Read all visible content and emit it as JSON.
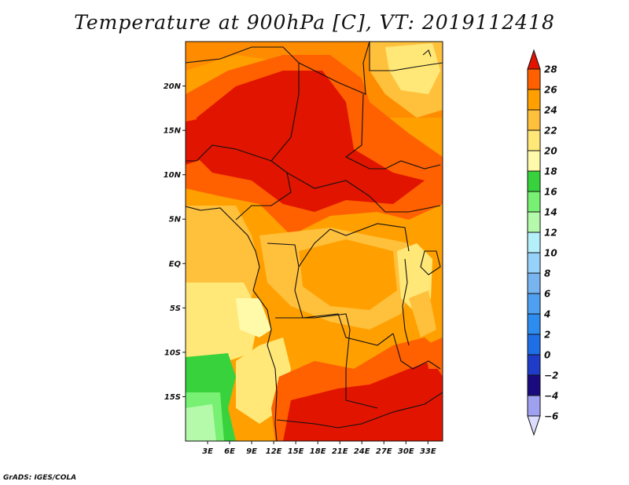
{
  "title": "Temperature at 900hPa [C], VT: 2019112418",
  "credit": "GrADS: IGES/COLA",
  "map": {
    "lon_range": [
      0,
      35
    ],
    "lat_range": [
      -20,
      25
    ],
    "lat_ticks": [
      {
        "value": 20,
        "label": "20N"
      },
      {
        "value": 15,
        "label": "15N"
      },
      {
        "value": 10,
        "label": "10N"
      },
      {
        "value": 5,
        "label": "5N"
      },
      {
        "value": 0,
        "label": "EQ"
      },
      {
        "value": -5,
        "label": "5S"
      },
      {
        "value": -10,
        "label": "10S"
      },
      {
        "value": -15,
        "label": "15S"
      }
    ],
    "lon_ticks": [
      {
        "value": 3,
        "label": "3E"
      },
      {
        "value": 6,
        "label": "6E"
      },
      {
        "value": 9,
        "label": "9E"
      },
      {
        "value": 12,
        "label": "12E"
      },
      {
        "value": 15,
        "label": "15E"
      },
      {
        "value": 18,
        "label": "18E"
      },
      {
        "value": 21,
        "label": "21E"
      },
      {
        "value": 24,
        "label": "24E"
      },
      {
        "value": 27,
        "label": "27E"
      },
      {
        "value": 30,
        "label": "30E"
      },
      {
        "value": 33,
        "label": "33E"
      }
    ]
  },
  "colorbar": {
    "bins": [
      {
        "value": -6,
        "color": "#a0a0f0"
      },
      {
        "value": -4,
        "color": "#1a0a80"
      },
      {
        "value": -2,
        "color": "#1e3cc8"
      },
      {
        "value": 0,
        "color": "#1e6ee6"
      },
      {
        "value": 2,
        "color": "#2c8cf0"
      },
      {
        "value": 4,
        "color": "#4ea0f0"
      },
      {
        "value": 6,
        "color": "#78b4f0"
      },
      {
        "value": 8,
        "color": "#96d2fa"
      },
      {
        "value": 10,
        "color": "#b4f0fa"
      },
      {
        "value": 12,
        "color": "#b4faaa"
      },
      {
        "value": 14,
        "color": "#78f073"
      },
      {
        "value": 16,
        "color": "#37d23c"
      },
      {
        "value": 18,
        "color": "#fffaaa"
      },
      {
        "value": 20,
        "color": "#ffe878"
      },
      {
        "value": 22,
        "color": "#ffc03c"
      },
      {
        "value": 24,
        "color": "#ffa000"
      },
      {
        "value": 26,
        "color": "#ff6000"
      },
      {
        "value": 28,
        "color": "#e11400"
      }
    ],
    "top_color": "#e11400",
    "bottom_color": "#dcdcff"
  }
}
